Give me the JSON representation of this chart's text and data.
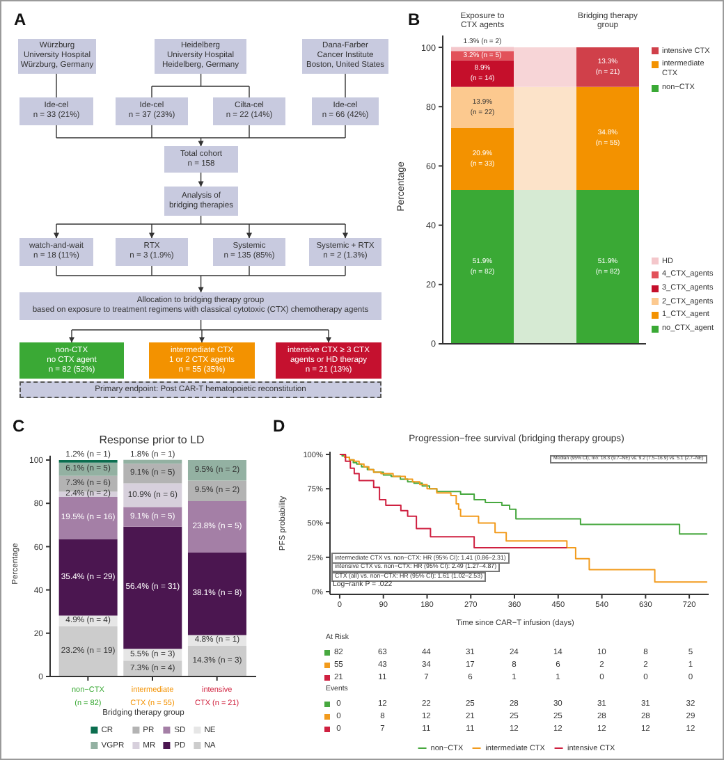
{
  "chart_data": [
    {
      "type": "other",
      "annotations": [
        "A"
      ],
      "categories": [
        "Würzburg\nUniversity Hospital\nWürzburg, Germany",
        "Heidelberg\nUniversity Hospital\nHeidelberg, Germany",
        "Dana-Farber\nCancer Institute\nBoston, United States",
        "Ide-cel\nn = 33 (21%)",
        "Ide-cel\nn = 37 (23%)",
        "Cilta-cel\nn = 22 (14%)",
        "Ide-cel\nn = 66 (42%)",
        "Total cohort\nn = 158",
        "Analysis of\nbridging therapies",
        "watch-and-wait\nn = 18 (11%)",
        "RTX\nn = 3 (1.9%)",
        "Systemic\nn = 135 (85%)",
        "Systemic + RTX\nn = 2 (1.3%)",
        "Allocation to bridging therapy group\nbased on exposure to treatment regimens with classical cytotoxic (CTX) chemotherapy agents",
        "non-CTX\nno CTX agent\nn = 82 (52%)",
        "intermediate CTX\n1 or 2 CTX agents\nn = 55 (35%)",
        "intensive CTX ≥ 3 CTX\nagents or HD therapy\nn = 21 (13%)",
        "Primary endpoint: Post CAR-T hematopoietic reconstitution"
      ],
      "colors": [
        "#c8cadf",
        "#c8cadf",
        "#c8cadf",
        "#c8cadf",
        "#c8cadf",
        "#c8cadf",
        "#c8cadf",
        "#c8cadf",
        "#c8cadf",
        "#c8cadf",
        "#c8cadf",
        "#c8cadf",
        "#c8cadf",
        "#c8cadf",
        "#3aa935",
        "#f39200",
        "#c5112f",
        "#c8cadf"
      ]
    },
    {
      "type": "bar",
      "stacked": true,
      "annotations": [
        "B"
      ],
      "ylabel": "Percentage",
      "categories": [
        "Exposure to\nCTX agents",
        null,
        "Bridging therapy\ngroup"
      ],
      "ylim": [
        0,
        104
      ],
      "yticks": [
        0,
        20,
        40,
        60,
        80,
        100
      ],
      "legend": "right",
      "series": [
        {
          "name": "no_CTX_agent",
          "color": "#3aa935",
          "values": [
            51.9,
            null,
            null
          ],
          "value_labels": [
            "51.9%\n(n = 82)",
            null,
            null
          ]
        },
        {
          "name": "1_CTX_agent",
          "color": "#f39200",
          "values": [
            20.9,
            null,
            null
          ],
          "value_labels": [
            "20.9%\n(n = 33)",
            null,
            null
          ]
        },
        {
          "name": "2_CTX_agents",
          "color": "#fcc98f",
          "values": [
            13.9,
            null,
            null
          ],
          "value_labels": [
            "13.9%\n(n = 22)",
            null,
            null
          ]
        },
        {
          "name": "3_CTX_agents",
          "color": "#c50f2b",
          "values": [
            8.9,
            null,
            null
          ],
          "value_labels": [
            "8.9%\n(n = 14)",
            null,
            null
          ]
        },
        {
          "name": "4_CTX_agents",
          "color": "#e2525a",
          "values": [
            3.2,
            null,
            null
          ],
          "value_labels": [
            "3.2% (n = 5)",
            null,
            null
          ]
        },
        {
          "name": "HD",
          "color": "#f4c7cb",
          "values": [
            1.3,
            null,
            null
          ],
          "value_labels": [
            "1.3% (n = 2)",
            null,
            null
          ]
        },
        {
          "name": "non−CTX",
          "color": "#3aa935",
          "colors": [
            null,
            "#d6ead3",
            "#3aa935"
          ],
          "values": [
            null,
            51.9,
            51.9
          ],
          "value_labels": [
            null,
            null,
            "51.9%\n(n = 82)"
          ]
        },
        {
          "name": "intermediate CTX",
          "color": "#f39200",
          "colors": [
            null,
            "#fce3c9",
            "#f39200"
          ],
          "values": [
            null,
            34.8,
            34.8
          ],
          "value_labels": [
            null,
            null,
            "34.8%\n(n = 55)"
          ]
        },
        {
          "name": "intensive CTX",
          "color": "#d0404a",
          "colors": [
            null,
            "#f7d5d7",
            "#d0404a"
          ],
          "values": [
            null,
            13.3,
            13.3
          ],
          "value_labels": [
            null,
            null,
            "13.3%\n(n = 21)"
          ]
        }
      ]
    },
    {
      "type": "bar",
      "stacked": true,
      "title": "Response prior to LD",
      "annotations": [
        "C"
      ],
      "xlabel": "Bridging therapy group",
      "ylabel": "Percentage",
      "categories": [
        "non−CTX\n(n = 82)",
        "intermediate\nCTX (n = 55)",
        "intensive\nCTX (n = 21)"
      ],
      "ylim": [
        0,
        102
      ],
      "yticks": [
        0,
        20,
        40,
        60,
        80,
        100
      ],
      "legend": "bottom",
      "series": [
        {
          "name": "NA",
          "color": "#cccccc",
          "values": [
            23.2,
            7.3,
            14.3
          ],
          "value_labels": [
            "23.2% (n = 19)",
            "7.3% (n = 4)",
            "14.3% (n = 3)"
          ]
        },
        {
          "name": "NE",
          "color": "#e6e6e6",
          "values": [
            4.9,
            5.5,
            4.8
          ],
          "value_labels": [
            "4.9% (n = 4)",
            "5.5% (n = 3)",
            "4.8% (n = 1)"
          ]
        },
        {
          "name": "PD",
          "color": "#4b1650",
          "values": [
            35.4,
            56.4,
            38.1
          ],
          "value_labels": [
            "35.4% (n = 29)",
            "56.4% (n = 31)",
            "38.1% (n = 8)"
          ]
        },
        {
          "name": "SD",
          "color": "#a47fa6",
          "values": [
            19.5,
            9.1,
            23.8
          ],
          "value_labels": [
            "19.5% (n = 16)",
            "9.1% (n = 5)",
            "23.8% (n = 5)"
          ]
        },
        {
          "name": "MR",
          "color": "#d7d0dc",
          "values": [
            2.4,
            10.9,
            null
          ],
          "value_labels": [
            "2.4% (n = 2)",
            "10.9% (n = 6)",
            null
          ]
        },
        {
          "name": "PR",
          "color": "#b3b3b3",
          "values": [
            7.3,
            9.1,
            9.5
          ],
          "value_labels": [
            "7.3% (n = 6)",
            "9.1% (n = 5)",
            "9.5% (n = 2)"
          ]
        },
        {
          "name": "VGPR",
          "color": "#93b1a2",
          "values": [
            6.1,
            1.8,
            9.5
          ],
          "value_labels": [
            "6.1% (n = 5)",
            "1.8% (n = 1)",
            "9.5% (n = 2)"
          ]
        },
        {
          "name": "CR",
          "color": "#0b6e4f",
          "values": [
            1.2,
            null,
            null
          ],
          "value_labels": [
            "1.2% (n = 1)",
            null,
            null
          ]
        }
      ]
    },
    {
      "type": "step",
      "title": "Progression−free survival (bridging therapy groups)",
      "annotations": [
        "D",
        "Median (95% CI), mo: 18.3 (9.7–NE) vs. 9.2 (7.5–16.9) vs. 5.1 (2.7–NE)",
        "intermediate CTX vs. non−CTX: HR (95% CI): 1.41 (0.86–2.31)",
        "intensive CTX vs. non−CTX: HR (95% CI): 2.49 (1.27–4.87)",
        "CTX (all) vs. non−CTX: HR (95% CI): 1.61 (1.02–2.53)",
        "Log−rank P = .022"
      ],
      "xlabel": "Time since CAR−T infusion (days)",
      "ylabel": "PFS probability",
      "xlim": [
        -20,
        760
      ],
      "xticks": [
        0,
        90,
        180,
        270,
        360,
        450,
        540,
        630,
        720
      ],
      "ylim": [
        -2,
        102
      ],
      "yticks": [
        {
          "value": 0,
          "label": "0%"
        },
        {
          "value": 25,
          "label": "25%"
        },
        {
          "value": 50,
          "label": "50%"
        },
        {
          "value": 75,
          "label": "75%"
        },
        {
          "value": 100,
          "label": "100%"
        }
      ],
      "legend": "bottom",
      "series": [
        {
          "name": "non−CTX",
          "color": "#47a83f",
          "x": [
            0,
            5,
            12,
            20,
            28,
            35,
            45,
            57,
            70,
            90,
            106,
            125,
            140,
            153,
            170,
            185,
            200,
            249,
            277,
            300,
            334,
            350,
            363,
            496,
            700,
            757
          ],
          "values": [
            100,
            99,
            98,
            96,
            94,
            93,
            91,
            89,
            87,
            85,
            84,
            82,
            80,
            79,
            77,
            75,
            73,
            71,
            67,
            65,
            63,
            60,
            53,
            49,
            42,
            42
          ]
        },
        {
          "name": "intermediate CTX",
          "color": "#f29b1d",
          "x": [
            0,
            10,
            20,
            30,
            40,
            50,
            60,
            70,
            85,
            110,
            135,
            150,
            165,
            180,
            200,
            229,
            240,
            245,
            249,
            286,
            320,
            343,
            468,
            486,
            514,
            649,
            757
          ],
          "values": [
            100,
            98,
            96,
            95,
            93,
            91,
            89,
            87,
            86,
            84,
            82,
            80,
            78,
            75,
            72,
            70,
            64,
            60,
            55,
            50,
            43,
            37,
            32,
            24,
            16,
            7,
            7
          ]
        },
        {
          "name": "intensive CTX",
          "color": "#cf2040",
          "x": [
            0,
            12,
            22,
            30,
            40,
            70,
            82,
            95,
            126,
            140,
            158,
            187,
            277,
            468
          ],
          "values": [
            100,
            95,
            90,
            86,
            81,
            76,
            67,
            63,
            59,
            55,
            46,
            40,
            32,
            32
          ]
        }
      ]
    },
    {
      "type": "other",
      "title": "At Risk",
      "colors": [
        "#47a83f",
        "#f29b1d",
        "#cf2040"
      ],
      "annotations": [
        "82 63 44 31 24 14 10 8 5",
        "55 43 34 17 8 6 2 2 1",
        "21 11 7 6 1 1 0 0 0"
      ]
    },
    {
      "type": "other",
      "title": "Events",
      "colors": [
        "#47a83f",
        "#f29b1d",
        "#cf2040"
      ],
      "annotations": [
        "0 12 22 25 28 30 31 31 32",
        "0 8 12 21 25 25 28 28 29",
        "0 7 11 11 12 12 12 12 12"
      ]
    }
  ]
}
